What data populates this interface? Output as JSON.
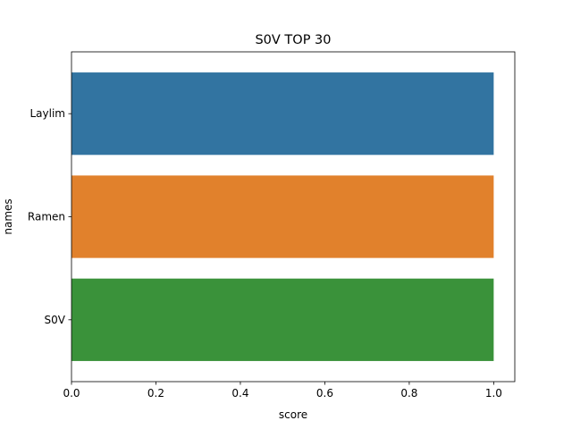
{
  "chart_data": {
    "type": "bar",
    "orientation": "horizontal",
    "title": "S0V TOP 30",
    "xlabel": "score",
    "ylabel": "names",
    "categories": [
      "Laylim",
      "Ramen",
      "S0V"
    ],
    "values": [
      1.0,
      1.0,
      1.0
    ],
    "colors": [
      "#3274a1",
      "#e1812c",
      "#3a923a"
    ],
    "xlim": [
      0,
      1.05
    ],
    "xticks": [
      "0.0",
      "0.2",
      "0.4",
      "0.6",
      "0.8",
      "1.0"
    ],
    "grid": false,
    "legend": "none"
  }
}
